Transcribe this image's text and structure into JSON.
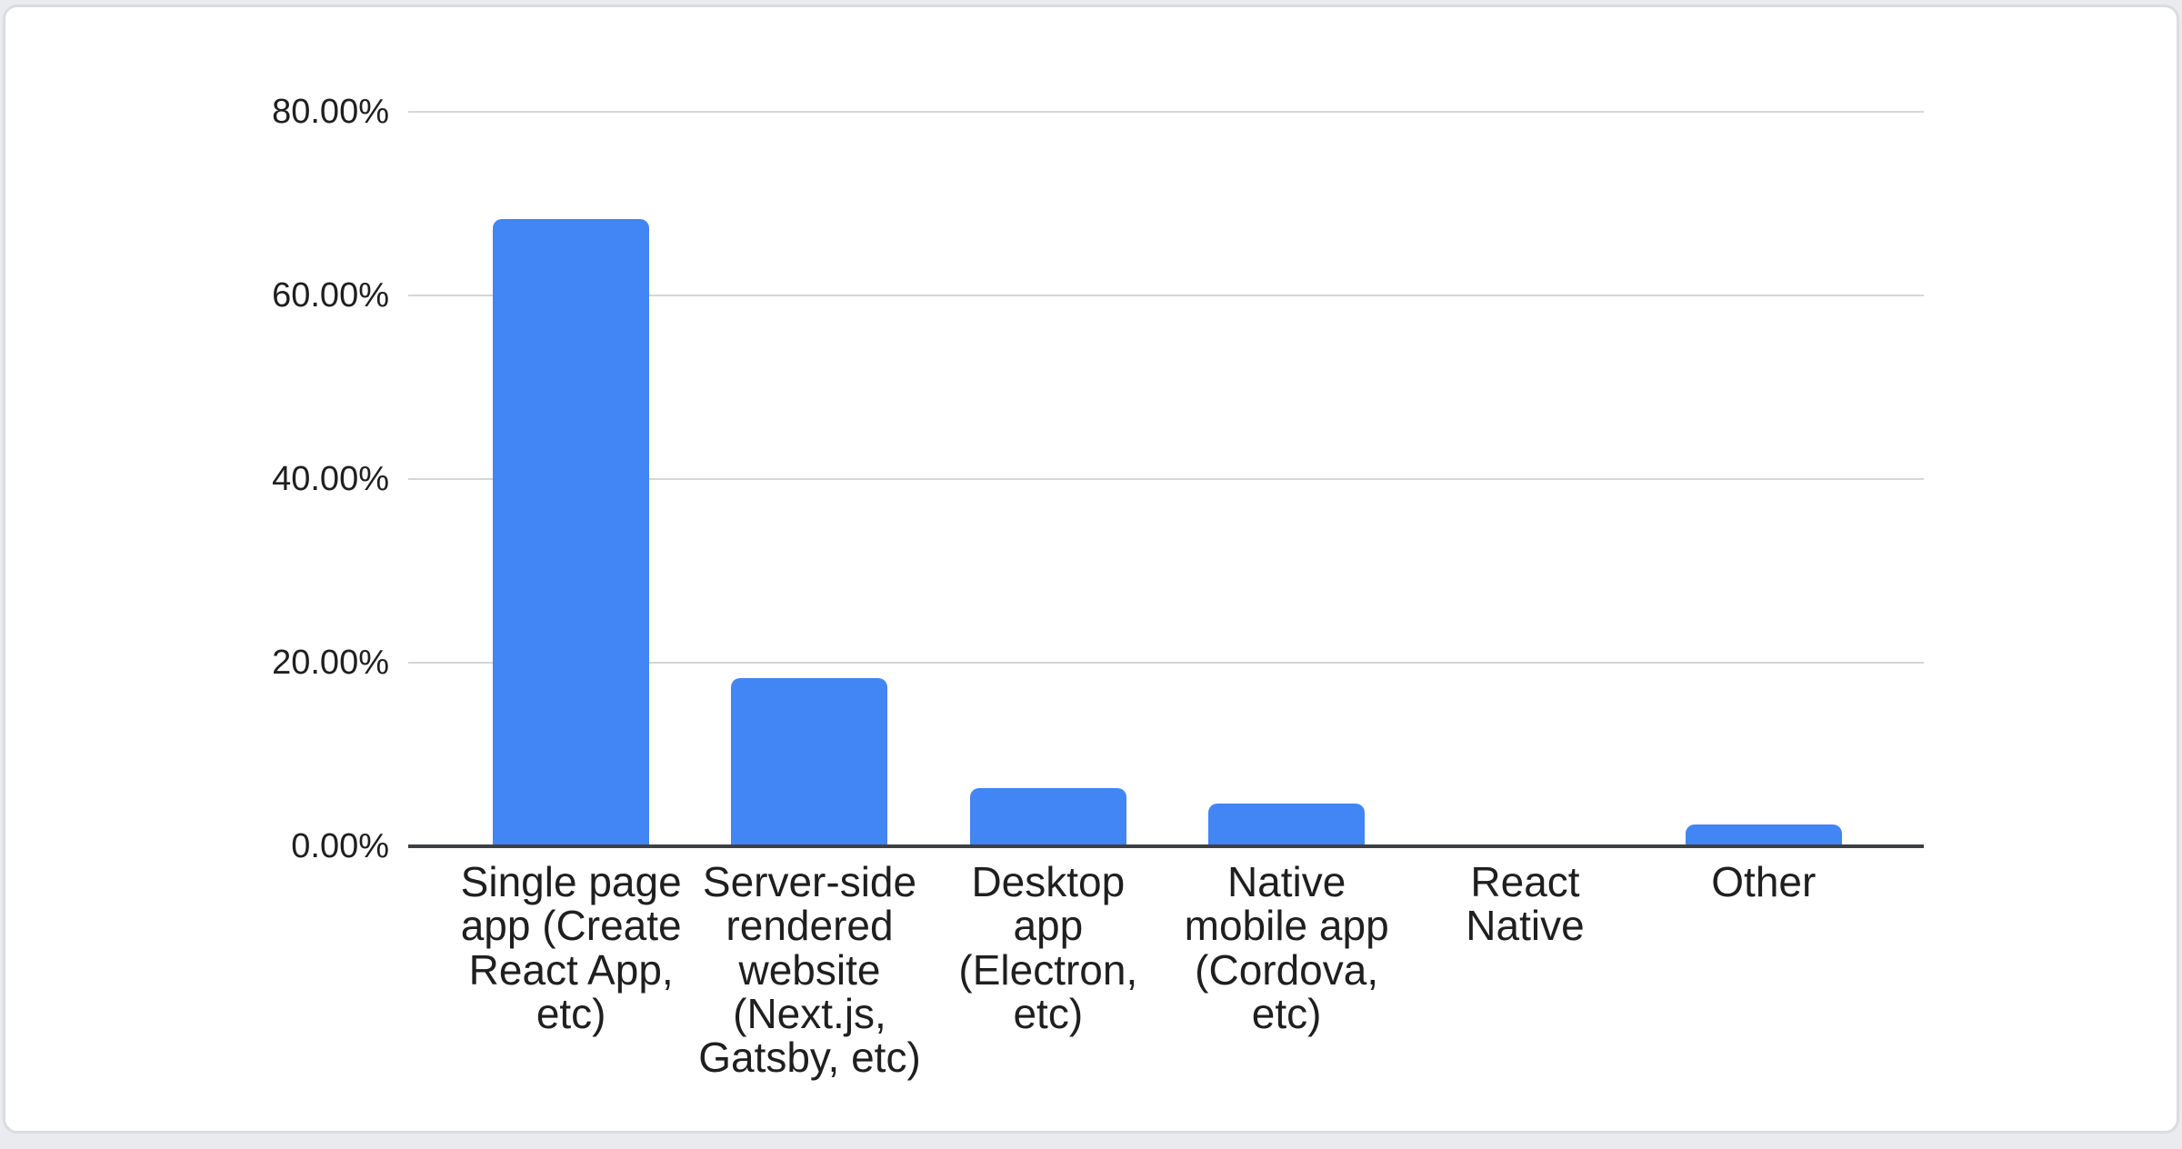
{
  "chart_data": {
    "type": "bar",
    "title": "",
    "xlabel": "",
    "ylabel": "",
    "categories": [
      "Single page app (Create React App, etc)",
      "Server-side rendered website (Next.js, Gatsby, etc)",
      "Desktop app (Electron, etc)",
      "Native mobile app (Cordova, etc)",
      "React Native",
      "Other"
    ],
    "values": [
      68.3,
      18.3,
      6.3,
      4.7,
      0,
      2.4
    ],
    "value_format": "percent",
    "ylim": [
      0,
      80
    ],
    "ytick_values": [
      80,
      60,
      40,
      20,
      0
    ],
    "yticks": [
      "80.00%",
      "60.00%",
      "40.00%",
      "20.00%",
      "0.00%"
    ],
    "grid": true,
    "legend": false
  },
  "colors": {
    "bar": "#4285f4",
    "gridline": "#d4d6d8",
    "axis_line": "#3c4043",
    "label_text": "#1f1f1f",
    "card_background": "#ffffff",
    "card_border": "#d9dce0",
    "page_background": "#e9ebee"
  }
}
